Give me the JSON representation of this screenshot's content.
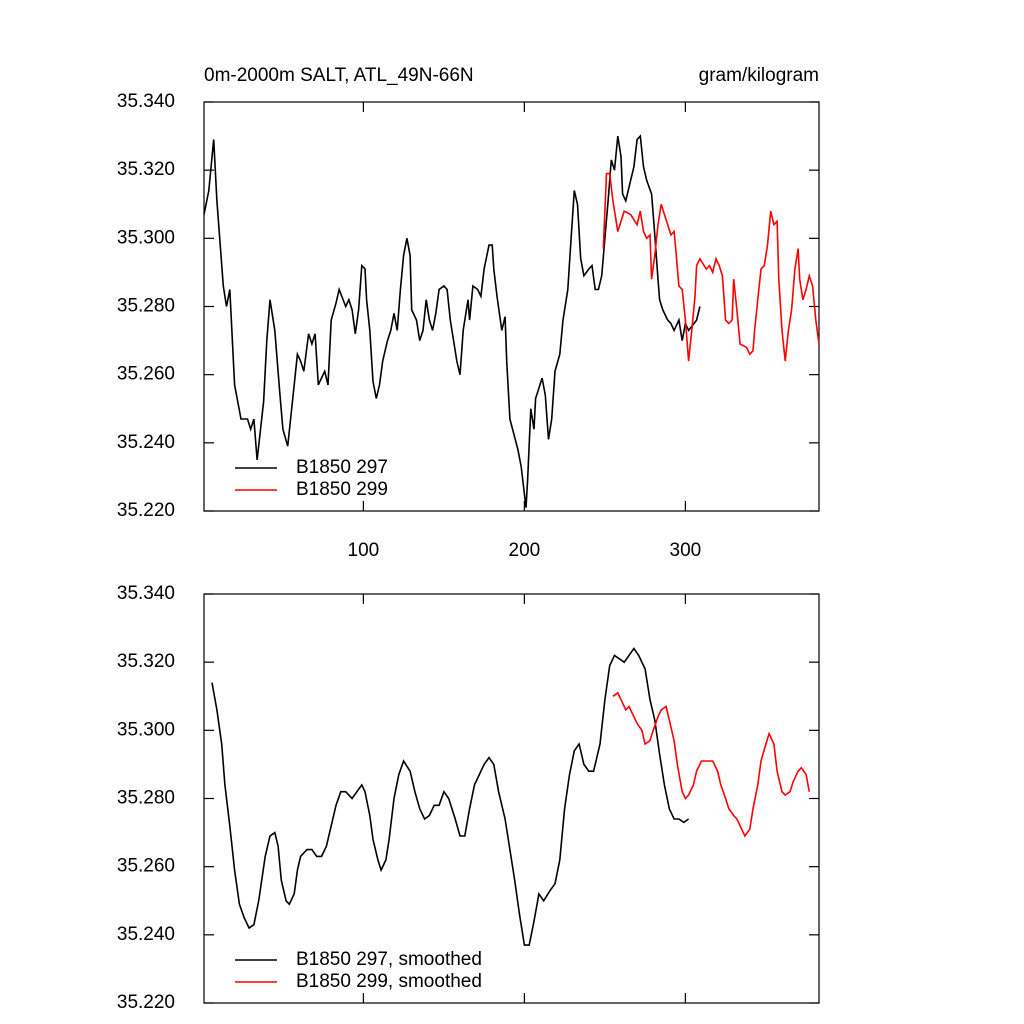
{
  "chart_data": [
    {
      "type": "line",
      "title": "0m-2000m SALT, ATL_49N-66N",
      "title_right": "gram/kilogram",
      "xlim": [
        1,
        383
      ],
      "xticks": [
        100,
        200,
        300
      ],
      "xtick_labels": true,
      "ylim": [
        35.22,
        35.34
      ],
      "yticks": [
        {
          "value": 35.22,
          "label": "35.220"
        },
        {
          "value": 35.24,
          "label": "35.240"
        },
        {
          "value": 35.26,
          "label": "35.260"
        },
        {
          "value": 35.28,
          "label": "35.280"
        },
        {
          "value": 35.3,
          "label": "35.300"
        },
        {
          "value": 35.32,
          "label": "35.320"
        },
        {
          "value": 35.34,
          "label": "35.340"
        }
      ],
      "legend": "lower left",
      "series": [
        {
          "name": "B1850 297",
          "color": "#000000",
          "x": [
            1,
            4,
            7,
            9,
            13,
            15,
            17,
            20,
            24,
            28,
            30,
            32,
            34,
            38,
            40,
            42,
            45,
            48,
            50,
            53,
            57,
            59,
            61,
            63,
            66,
            68,
            70,
            72,
            76,
            78,
            80,
            83,
            85,
            89,
            91,
            93,
            95,
            97,
            99,
            101,
            102,
            104,
            106,
            108,
            110,
            112,
            115,
            117,
            119,
            121,
            123,
            125,
            127,
            129,
            130,
            133,
            135,
            137,
            139,
            141,
            143,
            145,
            147,
            150,
            152,
            154,
            157,
            158,
            160,
            162,
            165,
            166,
            168,
            171,
            173,
            175,
            178,
            180,
            181,
            183,
            186,
            188,
            189,
            191,
            196,
            198,
            201,
            202,
            204,
            206,
            207,
            211,
            213,
            215,
            217,
            219,
            222,
            224,
            227,
            229,
            231,
            233,
            235,
            237,
            240,
            242,
            244,
            246,
            248,
            250,
            252,
            254,
            256,
            258,
            260,
            261,
            263,
            266,
            268,
            270,
            272,
            274,
            276,
            279,
            281,
            283,
            284,
            286,
            289,
            291,
            293,
            296,
            298,
            300,
            302,
            307,
            309
          ],
          "values": [
            35.307,
            35.314,
            35.329,
            35.311,
            35.286,
            35.28,
            35.285,
            35.257,
            35.247,
            35.247,
            35.244,
            35.247,
            35.235,
            35.252,
            35.27,
            35.282,
            35.273,
            35.255,
            35.244,
            35.239,
            35.257,
            35.266,
            35.264,
            35.261,
            35.272,
            35.269,
            35.272,
            35.257,
            35.261,
            35.257,
            35.276,
            35.281,
            35.285,
            35.28,
            35.282,
            35.279,
            35.272,
            35.279,
            35.292,
            35.291,
            35.282,
            35.273,
            35.258,
            35.253,
            35.257,
            35.264,
            35.27,
            35.273,
            35.278,
            35.273,
            35.285,
            35.295,
            35.3,
            35.295,
            35.279,
            35.276,
            35.27,
            35.273,
            35.282,
            35.276,
            35.273,
            35.278,
            35.285,
            35.286,
            35.285,
            35.276,
            35.267,
            35.264,
            35.26,
            35.273,
            35.282,
            35.276,
            35.286,
            35.285,
            35.283,
            35.291,
            35.298,
            35.298,
            35.291,
            35.283,
            35.273,
            35.277,
            35.264,
            35.247,
            35.238,
            35.233,
            35.221,
            35.229,
            35.25,
            35.244,
            35.253,
            35.259,
            35.254,
            35.241,
            35.247,
            35.261,
            35.266,
            35.276,
            35.285,
            35.3,
            35.314,
            35.31,
            35.294,
            35.289,
            35.291,
            35.292,
            35.285,
            35.285,
            35.289,
            35.3,
            35.311,
            35.323,
            35.32,
            35.33,
            35.324,
            35.313,
            35.311,
            35.317,
            35.321,
            35.329,
            35.33,
            35.321,
            35.317,
            35.313,
            35.301,
            35.288,
            35.282,
            35.279,
            35.276,
            35.275,
            35.273,
            35.276,
            35.27,
            35.275,
            35.273,
            35.276,
            35.28
          ]
        },
        {
          "name": "B1850 299",
          "color": "#ff0000",
          "x": [
            249,
            251,
            253,
            255,
            258,
            260,
            262,
            266,
            270,
            272,
            274,
            276,
            278,
            279,
            281,
            283,
            285,
            289,
            291,
            293,
            294,
            296,
            298,
            300,
            302,
            304,
            306,
            307,
            309,
            313,
            315,
            317,
            319,
            321,
            323,
            325,
            327,
            329,
            330,
            332,
            334,
            338,
            340,
            342,
            343,
            345,
            347,
            349,
            351,
            353,
            355,
            357,
            358,
            360,
            362,
            364,
            366,
            368,
            370,
            371,
            373,
            375,
            377,
            379,
            381,
            383
          ],
          "values": [
            35.297,
            35.319,
            35.319,
            35.311,
            35.302,
            35.305,
            35.308,
            35.307,
            35.304,
            35.308,
            35.302,
            35.3,
            35.301,
            35.288,
            35.295,
            35.304,
            35.31,
            35.304,
            35.301,
            35.302,
            35.297,
            35.286,
            35.285,
            35.276,
            35.264,
            35.273,
            35.283,
            35.292,
            35.294,
            35.291,
            35.292,
            35.29,
            35.294,
            35.292,
            35.289,
            35.276,
            35.275,
            35.276,
            35.288,
            35.279,
            35.269,
            35.268,
            35.266,
            35.267,
            35.273,
            35.282,
            35.291,
            35.292,
            35.298,
            35.308,
            35.304,
            35.305,
            35.288,
            35.273,
            35.264,
            35.273,
            35.279,
            35.291,
            35.297,
            35.288,
            35.282,
            35.285,
            35.289,
            35.286,
            35.276,
            35.269
          ]
        }
      ]
    },
    {
      "type": "line",
      "xlim": [
        1,
        383
      ],
      "xticks": [
        100,
        200,
        300
      ],
      "xtick_labels": false,
      "ylim": [
        35.22,
        35.34
      ],
      "yticks": [
        {
          "value": 35.22,
          "label": "35.220"
        },
        {
          "value": 35.24,
          "label": "35.240"
        },
        {
          "value": 35.26,
          "label": "35.260"
        },
        {
          "value": 35.28,
          "label": "35.280"
        },
        {
          "value": 35.3,
          "label": "35.300"
        },
        {
          "value": 35.32,
          "label": "35.320"
        },
        {
          "value": 35.34,
          "label": "35.340"
        }
      ],
      "legend": "lower left",
      "series": [
        {
          "name": "B1850 297, smoothed",
          "color": "#000000",
          "x": [
            6,
            9,
            12,
            14,
            17,
            20,
            23,
            26,
            29,
            32,
            35,
            39,
            42,
            45,
            47,
            49,
            52,
            54,
            57,
            59,
            61,
            65,
            68,
            71,
            74,
            77,
            80,
            83,
            86,
            89,
            93,
            96,
            99,
            101,
            104,
            106,
            109,
            111,
            114,
            116,
            119,
            122,
            125,
            129,
            132,
            135,
            138,
            141,
            144,
            147,
            150,
            153,
            157,
            160,
            163,
            166,
            169,
            172,
            175,
            178,
            181,
            184,
            188,
            191,
            194,
            197,
            200,
            203,
            206,
            209,
            212,
            216,
            219,
            222,
            225,
            228,
            231,
            234,
            237,
            240,
            243,
            247,
            250,
            253,
            256,
            259,
            262,
            265,
            268,
            271,
            275,
            278,
            281,
            284,
            287,
            290,
            293,
            296,
            299,
            302
          ],
          "values": [
            35.314,
            35.306,
            35.296,
            35.284,
            35.272,
            35.259,
            35.249,
            35.245,
            35.242,
            35.243,
            35.25,
            35.263,
            35.269,
            35.27,
            35.266,
            35.256,
            35.25,
            35.249,
            35.252,
            35.259,
            35.263,
            35.265,
            35.265,
            35.263,
            35.263,
            35.266,
            35.272,
            35.278,
            35.282,
            35.282,
            35.28,
            35.282,
            35.284,
            35.282,
            35.275,
            35.268,
            35.262,
            35.259,
            35.262,
            35.268,
            35.28,
            35.287,
            35.291,
            35.288,
            35.282,
            35.277,
            35.274,
            35.275,
            35.278,
            35.278,
            35.282,
            35.28,
            35.274,
            35.269,
            35.269,
            35.277,
            35.284,
            35.287,
            35.29,
            35.292,
            35.29,
            35.282,
            35.274,
            35.265,
            35.256,
            35.246,
            35.237,
            35.237,
            35.244,
            35.252,
            35.25,
            35.253,
            35.255,
            35.262,
            35.277,
            35.287,
            35.294,
            35.296,
            35.29,
            35.288,
            35.288,
            35.296,
            35.309,
            35.319,
            35.322,
            35.321,
            35.32,
            35.322,
            35.324,
            35.322,
            35.318,
            35.309,
            35.303,
            35.293,
            35.284,
            35.277,
            35.274,
            35.274,
            35.273,
            35.274
          ]
        },
        {
          "name": "B1850 299, smoothed",
          "color": "#ff0000",
          "x": [
            255,
            258,
            260,
            263,
            265,
            268,
            270,
            273,
            275,
            278,
            280,
            283,
            285,
            288,
            290,
            293,
            295,
            298,
            300,
            302,
            305,
            307,
            310,
            312,
            315,
            317,
            320,
            322,
            325,
            327,
            330,
            332,
            335,
            337,
            340,
            342,
            345,
            347,
            350,
            352,
            355,
            357,
            360,
            362,
            365,
            367,
            370,
            372,
            375,
            377
          ],
          "values": [
            35.31,
            35.311,
            35.309,
            35.306,
            35.307,
            35.304,
            35.302,
            35.3,
            35.296,
            35.297,
            35.3,
            35.304,
            35.306,
            35.307,
            35.303,
            35.297,
            35.29,
            35.282,
            35.28,
            35.281,
            35.284,
            35.288,
            35.291,
            35.291,
            35.291,
            35.291,
            35.288,
            35.284,
            35.28,
            35.277,
            35.275,
            35.274,
            35.271,
            35.269,
            35.271,
            35.277,
            35.284,
            35.291,
            35.296,
            35.299,
            35.296,
            35.288,
            35.282,
            35.281,
            35.282,
            35.285,
            35.288,
            35.289,
            35.287,
            35.282
          ]
        }
      ]
    }
  ]
}
